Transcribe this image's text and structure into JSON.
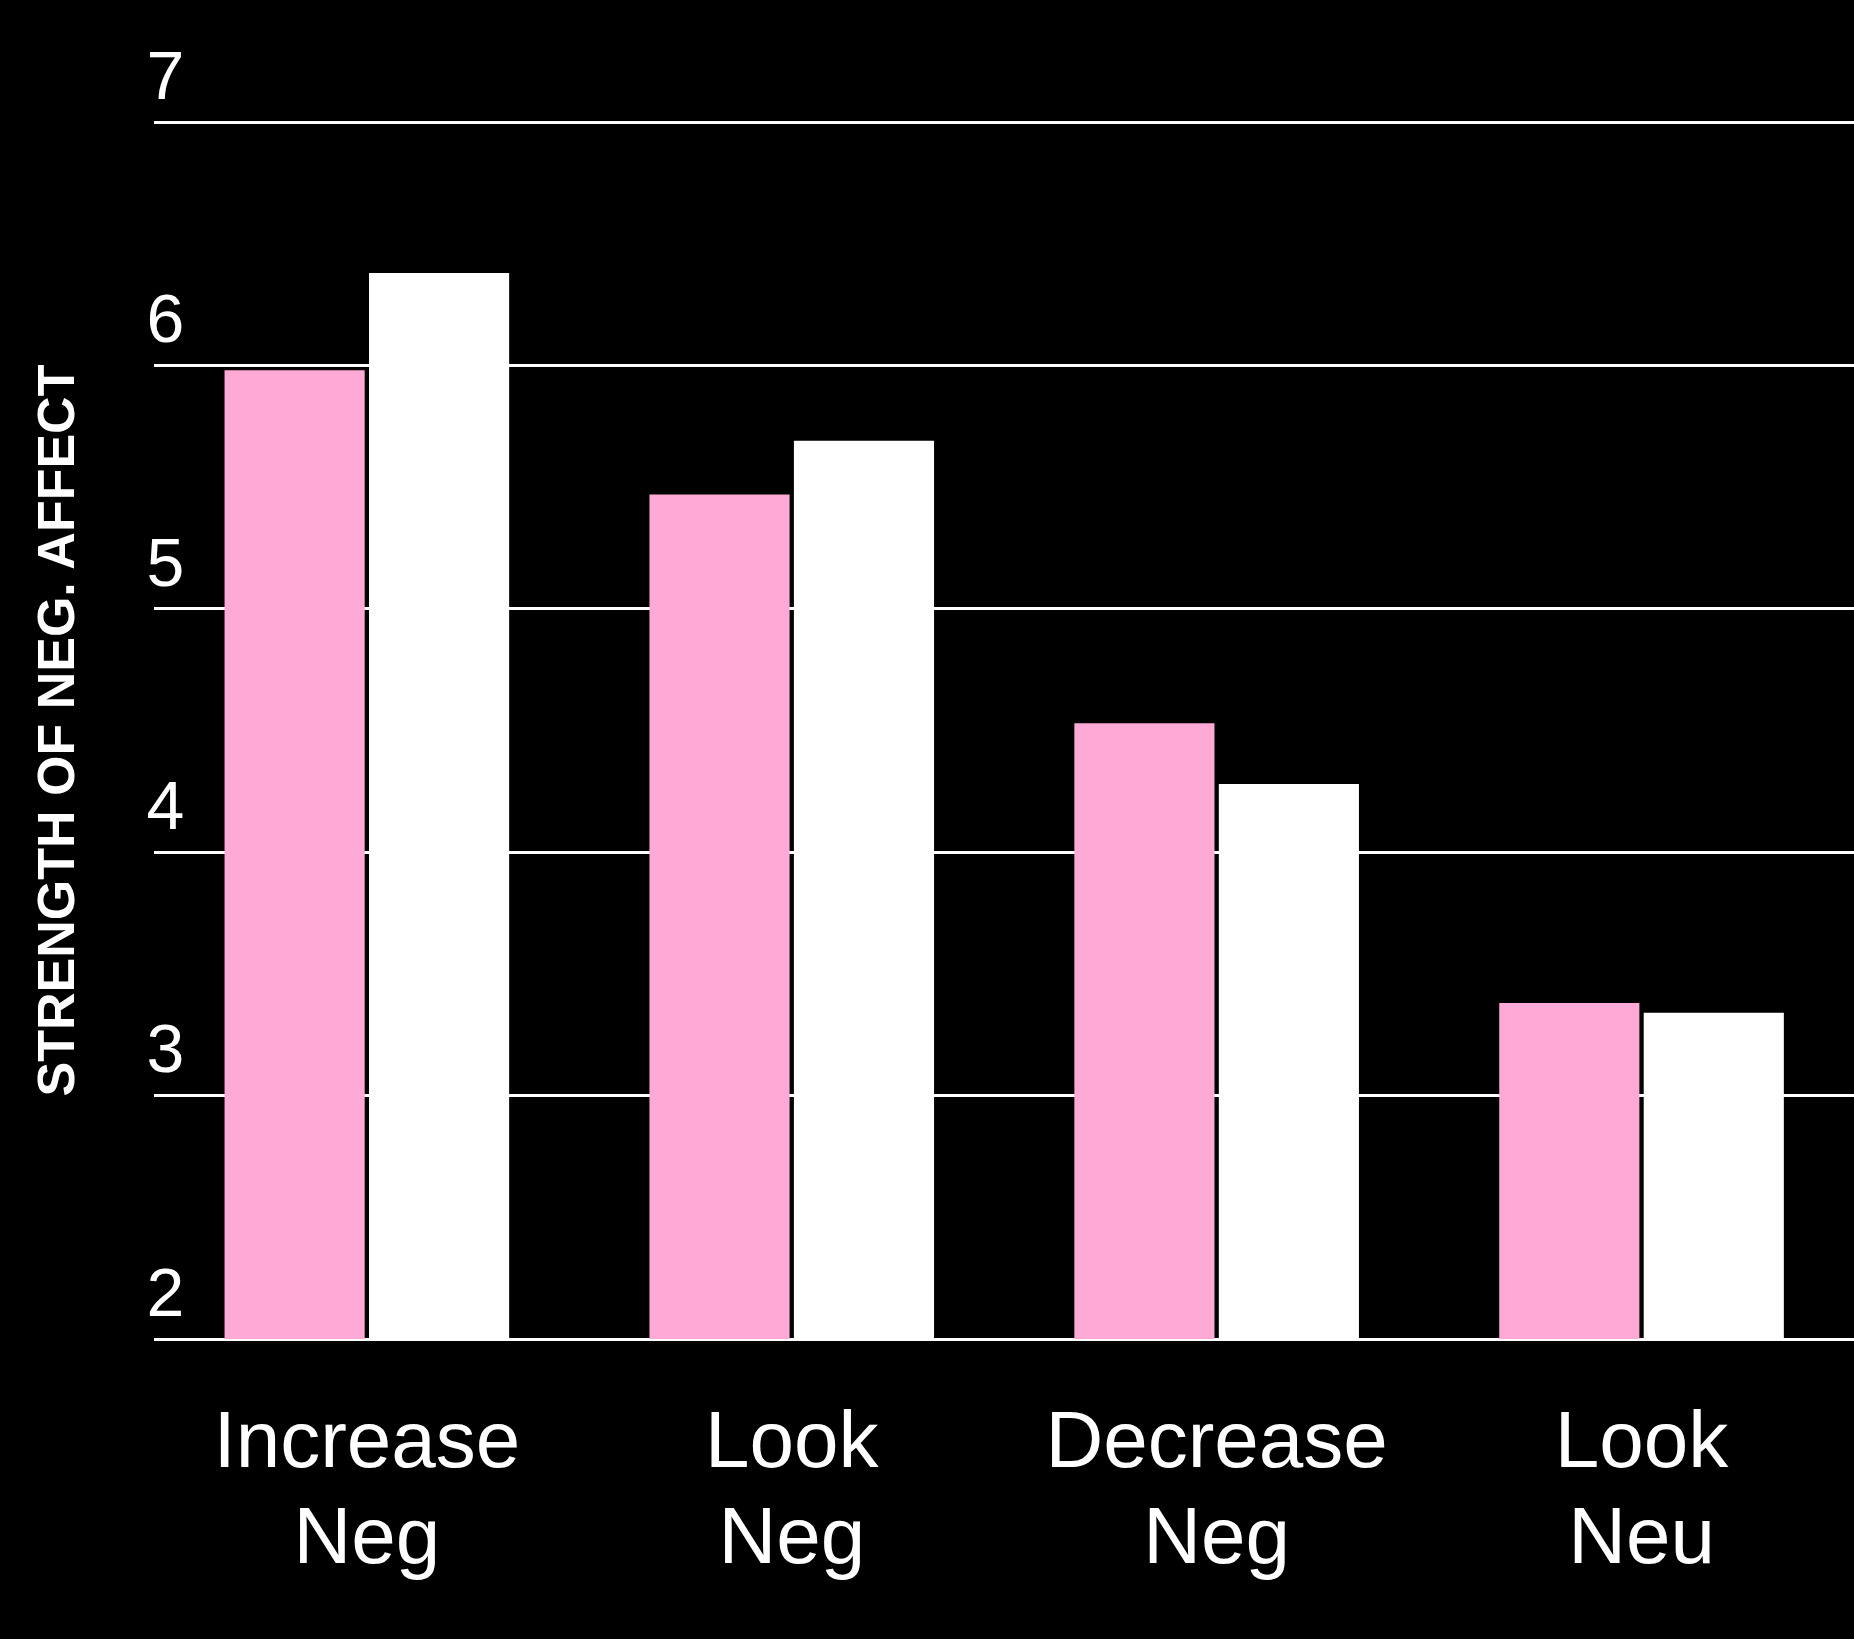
{
  "chart_data": {
    "type": "bar",
    "ylabel": "STRENGTH OF NEG. AFFECT",
    "categories": [
      "Increase Neg",
      "Look Neg",
      "Decrease Neg",
      "Look Neu"
    ],
    "series": [
      {
        "color": "#ffaad6",
        "values": [
          5.98,
          5.47,
          4.53,
          3.38
        ]
      },
      {
        "color": "#ffffff",
        "values": [
          6.38,
          5.69,
          4.28,
          3.34
        ]
      }
    ],
    "ylim": [
      2,
      7
    ],
    "yticks": [
      2,
      3,
      4,
      5,
      6,
      7
    ],
    "grid": "y",
    "legend": false
  }
}
